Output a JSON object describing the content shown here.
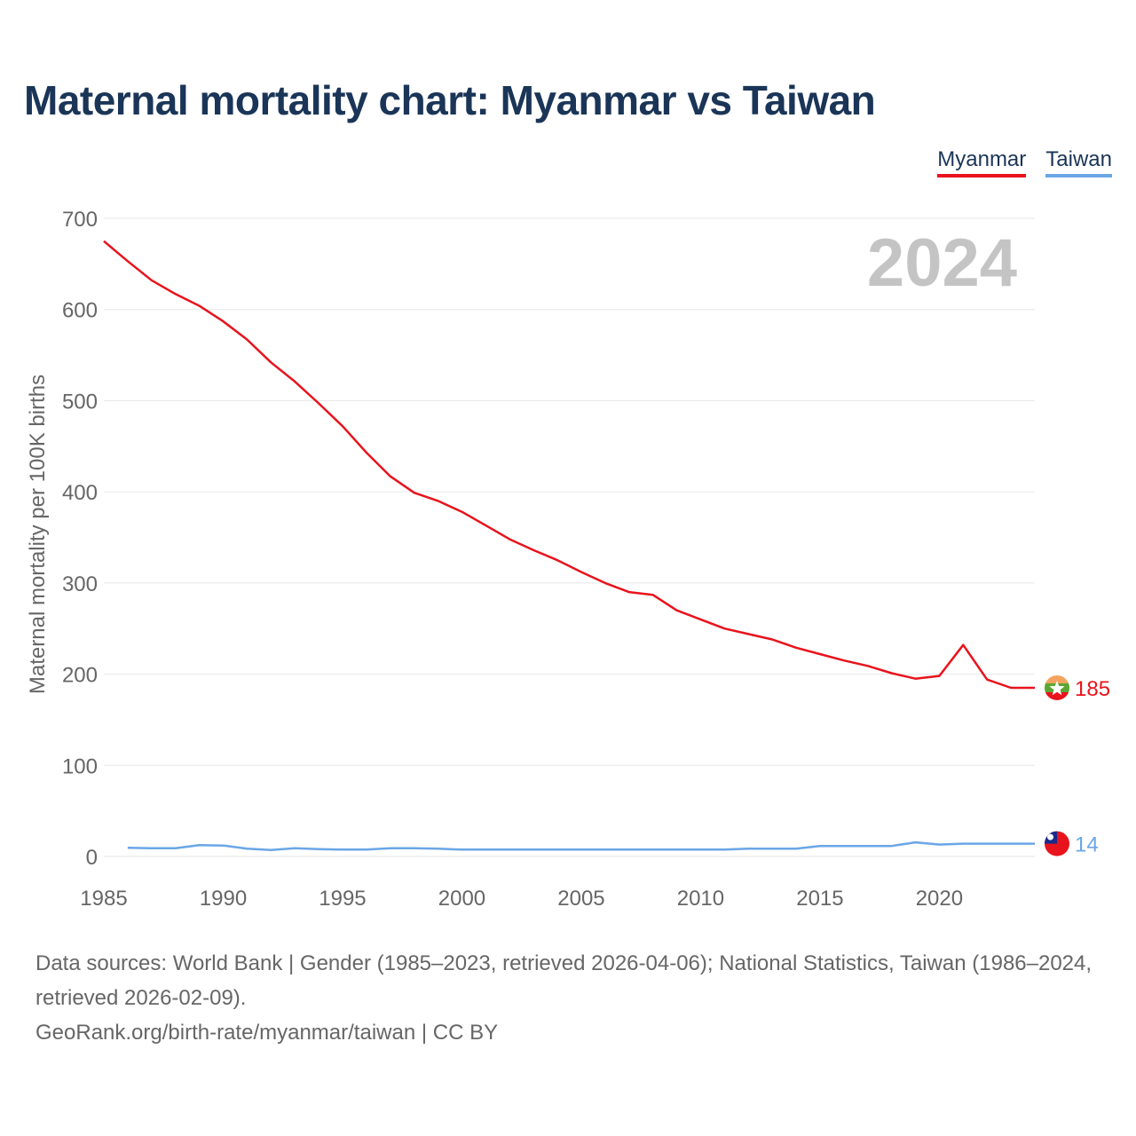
{
  "chart_data": {
    "type": "line",
    "title": "Maternal mortality chart: Myanmar vs Taiwan",
    "ylabel": "Maternal mortality per 100K births",
    "xlabel": "",
    "xlim": [
      1985,
      2024
    ],
    "ylim": [
      0,
      700
    ],
    "x_ticks": [
      1985,
      1990,
      1995,
      2000,
      2005,
      2010,
      2015,
      2020
    ],
    "y_ticks": [
      0,
      100,
      200,
      300,
      400,
      500,
      600,
      700
    ],
    "grid": true,
    "year_label": "2024",
    "legend_position": "top-right",
    "series": [
      {
        "name": "Myanmar",
        "color": "#e8131c",
        "end_label": "185",
        "flag_icon": "myanmar-flag-icon",
        "x": [
          1985,
          1986,
          1987,
          1988,
          1989,
          1990,
          1991,
          1992,
          1993,
          1994,
          1995,
          1996,
          1997,
          1998,
          1999,
          2000,
          2001,
          2002,
          2003,
          2004,
          2005,
          2006,
          2007,
          2008,
          2009,
          2010,
          2011,
          2012,
          2013,
          2014,
          2015,
          2016,
          2017,
          2018,
          2019,
          2020,
          2021,
          2022,
          2023,
          2024
        ],
        "values": [
          675,
          653,
          632,
          617,
          604,
          587,
          567,
          542,
          521,
          497,
          472,
          443,
          417,
          399,
          390,
          378,
          363,
          348,
          336,
          325,
          312,
          300,
          290,
          287,
          270,
          260,
          250,
          244,
          238,
          229,
          222,
          215,
          209,
          201,
          195,
          198,
          232,
          194,
          185,
          185
        ]
      },
      {
        "name": "Taiwan",
        "color": "#6aa6e6",
        "end_label": "14",
        "flag_icon": "taiwan-flag-icon",
        "x": [
          1986,
          1987,
          1988,
          1989,
          1990,
          1991,
          1992,
          1993,
          1994,
          1995,
          1996,
          1997,
          1998,
          1999,
          2000,
          2001,
          2002,
          2003,
          2004,
          2005,
          2006,
          2007,
          2008,
          2009,
          2010,
          2011,
          2012,
          2013,
          2014,
          2015,
          2016,
          2017,
          2018,
          2019,
          2020,
          2021,
          2022,
          2023,
          2024
        ],
        "values": [
          9.5,
          9,
          9,
          12.5,
          12,
          8.5,
          7,
          9,
          8,
          7.5,
          7.5,
          9,
          9,
          8.5,
          7.5,
          7.5,
          7.5,
          7.5,
          7.5,
          7.5,
          7.5,
          7.5,
          7.5,
          7.5,
          7.5,
          7.5,
          8.5,
          8.5,
          8.5,
          11.5,
          11.5,
          11.5,
          11.5,
          15.5,
          13,
          14,
          14,
          14,
          14
        ]
      }
    ]
  },
  "footer": {
    "sources": "Data sources: World Bank | Gender (1985–2023, retrieved 2026-04-06); National Statistics, Taiwan (1986–2024, retrieved 2026-02-09).",
    "credit": "GeoRank.org/birth-rate/myanmar/taiwan | CC BY"
  }
}
